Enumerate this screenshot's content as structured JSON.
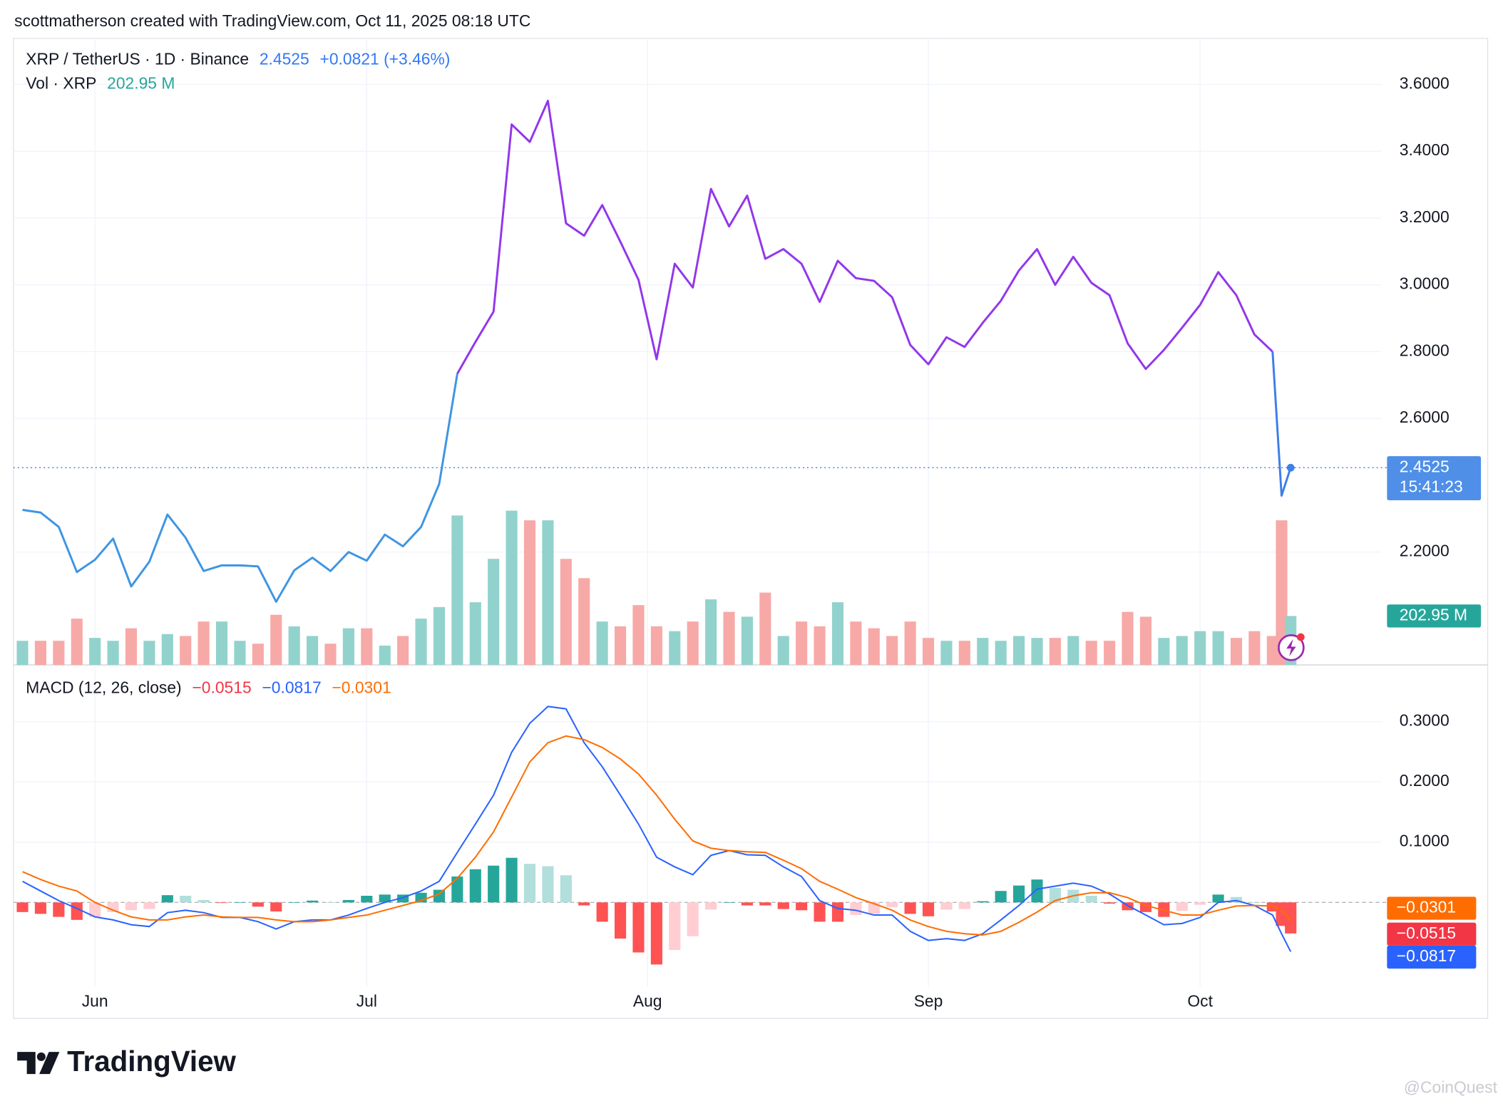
{
  "header": "scottmatherson created with TradingView.com, Oct 11, 2025 08:18 UTC",
  "logo": "TradingView",
  "watermark": "@CoinQuest",
  "chart_data": [
    {
      "type": "line",
      "change": "+0.0821 (+3.46%)",
      "countdown": "15:41:23",
      "x": [
        -8,
        -6,
        -4,
        -2,
        0,
        2,
        4,
        6,
        8,
        10,
        12,
        14,
        16,
        18,
        20,
        22,
        24,
        26,
        28,
        30,
        32,
        34,
        36,
        38,
        40,
        42,
        44,
        46,
        48,
        50,
        52,
        54,
        56,
        58,
        60,
        62,
        64,
        66,
        68,
        70,
        72,
        74,
        76,
        78,
        80,
        82,
        84,
        86,
        88,
        90,
        92,
        94,
        96,
        98,
        100,
        102,
        104,
        106,
        108,
        110,
        112,
        114,
        116,
        118,
        120,
        122,
        124,
        126,
        128,
        130,
        131,
        132
      ],
      "xlim": [
        -9,
        142
      ],
      "ylim": [
        1.862,
        3.738
      ],
      "yticks": [
        {
          "value": 2.2,
          "label": "2.2000"
        },
        {
          "value": 2.6,
          "label": "2.6000"
        },
        {
          "value": 2.8,
          "label": "2.8000"
        },
        {
          "value": 3.0,
          "label": "3.0000"
        },
        {
          "value": 3.2,
          "label": "3.2000"
        },
        {
          "value": 3.4,
          "label": "3.4000"
        },
        {
          "value": 3.6,
          "label": "3.6000"
        }
      ],
      "y2lim": [
        0,
        2600
      ],
      "grid": true,
      "series": [
        {
          "name": "XRP / TetherUS · 1D · Binance",
          "colors": [
            {
              "until": 40,
              "color": "#3d95e3"
            },
            {
              "until": 130,
              "color": "#9336eb"
            },
            {
              "until": 132,
              "color": "#3d7fe6"
            }
          ],
          "values": [
            2.326,
            2.318,
            2.275,
            2.14,
            2.177,
            2.24,
            2.097,
            2.171,
            2.312,
            2.243,
            2.143,
            2.16,
            2.16,
            2.157,
            2.051,
            2.145,
            2.183,
            2.143,
            2.2,
            2.174,
            2.252,
            2.217,
            2.275,
            2.404,
            2.734,
            2.829,
            2.92,
            3.48,
            3.428,
            3.551,
            3.184,
            3.147,
            3.239,
            3.129,
            3.015,
            2.777,
            3.063,
            2.992,
            3.287,
            3.175,
            3.267,
            3.078,
            3.107,
            3.063,
            2.949,
            3.072,
            3.02,
            3.012,
            2.963,
            2.82,
            2.762,
            2.843,
            2.814,
            2.886,
            2.952,
            3.043,
            3.107,
            3.0,
            3.084,
            3.006,
            2.969,
            2.825,
            2.748,
            2.805,
            2.871,
            2.94,
            3.038,
            2.969,
            2.851,
            2.8,
            2.369,
            2.4525
          ]
        },
        {
          "name": "Vol · XRP",
          "type": "bar",
          "axis": "y2",
          "colors": [
            "#92d2cc",
            "#f7a9a7"
          ],
          "last_label": "202.95 M",
          "values": [
            100,
            100,
            100,
            192,
            112,
            100,
            152,
            100,
            128,
            120,
            180,
            180,
            100,
            88,
            208,
            160,
            120,
            88,
            152,
            152,
            80,
            120,
            192,
            240,
            620,
            260,
            440,
            640,
            600,
            600,
            440,
            360,
            180,
            160,
            248,
            160,
            140,
            180,
            272,
            220,
            200,
            300,
            120,
            180,
            160,
            260,
            180,
            152,
            120,
            180,
            112,
            100,
            100,
            112,
            100,
            120,
            112,
            112,
            120,
            100,
            100,
            220,
            200,
            112,
            120,
            140,
            140,
            112,
            140,
            120,
            600,
            202.95
          ]
        }
      ]
    },
    {
      "type": "line",
      "title": "MACD (12, 26, close)",
      "x": [
        -8,
        -6,
        -4,
        -2,
        0,
        2,
        4,
        6,
        8,
        10,
        12,
        14,
        16,
        18,
        20,
        22,
        24,
        26,
        28,
        30,
        32,
        34,
        36,
        38,
        40,
        42,
        44,
        46,
        48,
        50,
        52,
        54,
        56,
        58,
        60,
        62,
        64,
        66,
        68,
        70,
        72,
        74,
        76,
        78,
        80,
        82,
        84,
        86,
        88,
        90,
        92,
        94,
        96,
        98,
        100,
        102,
        104,
        106,
        108,
        110,
        112,
        114,
        116,
        118,
        120,
        122,
        124,
        126,
        128,
        130,
        131,
        132
      ],
      "xlim": [
        -9,
        142
      ],
      "xticks": [
        {
          "value": 0,
          "label": "Jun"
        },
        {
          "value": 30,
          "label": "Jul"
        },
        {
          "value": 61,
          "label": "Aug"
        },
        {
          "value": 92,
          "label": "Sep"
        },
        {
          "value": 122,
          "label": "Oct"
        }
      ],
      "ylim": [
        -0.14,
        0.394
      ],
      "yticks": [
        {
          "value": 0.1,
          "label": "0.1000"
        },
        {
          "value": 0.2,
          "label": "0.2000"
        },
        {
          "value": 0.3,
          "label": "0.3000"
        }
      ],
      "series": [
        {
          "type": "bar",
          "colors": [
            "#26a69a",
            "#b2dfdb",
            "#ffcdd2",
            "#ff5252"
          ],
          "last_label": "−0.0515",
          "values": [
            -0.016,
            -0.019,
            -0.024,
            -0.029,
            -0.024,
            -0.016,
            -0.013,
            -0.011,
            0.012,
            0.011,
            0.004,
            -0.001,
            0,
            -0.007,
            -0.015,
            0,
            0.003,
            0,
            0.004,
            0.011,
            0.013,
            0.013,
            0.016,
            0.021,
            0.043,
            0.055,
            0.061,
            0.074,
            0.064,
            0.06,
            0.045,
            -0.005,
            -0.032,
            -0.06,
            -0.083,
            -0.103,
            -0.079,
            -0.056,
            -0.012,
            0,
            -0.005,
            -0.005,
            -0.011,
            -0.013,
            -0.032,
            -0.032,
            -0.021,
            -0.019,
            -0.008,
            -0.019,
            -0.023,
            -0.012,
            -0.011,
            0.002,
            0.019,
            0.028,
            0.038,
            0.024,
            0.021,
            0.011,
            -0.002,
            -0.013,
            -0.016,
            -0.024,
            -0.014,
            -0.004,
            0.013,
            0.009,
            0,
            -0.015,
            -0.039,
            -0.0515
          ]
        },
        {
          "type": "line",
          "color": "#2962ff",
          "last_label": "−0.0817",
          "values": [
            0.035,
            0.019,
            0.003,
            -0.01,
            -0.024,
            -0.029,
            -0.037,
            -0.04,
            -0.017,
            -0.013,
            -0.017,
            -0.025,
            -0.025,
            -0.032,
            -0.044,
            -0.032,
            -0.029,
            -0.029,
            -0.021,
            -0.01,
            0,
            0.008,
            0.019,
            0.035,
            0.083,
            0.13,
            0.178,
            0.249,
            0.297,
            0.325,
            0.321,
            0.265,
            0.225,
            0.178,
            0.13,
            0.075,
            0.059,
            0.046,
            0.078,
            0.086,
            0.079,
            0.078,
            0.059,
            0.043,
            0.003,
            -0.01,
            -0.013,
            -0.021,
            -0.021,
            -0.048,
            -0.063,
            -0.06,
            -0.063,
            -0.052,
            -0.029,
            -0.005,
            0.022,
            0.027,
            0.032,
            0.027,
            0.014,
            -0.005,
            -0.021,
            -0.037,
            -0.035,
            -0.025,
            0,
            0.003,
            -0.005,
            -0.021,
            -0.052,
            -0.0817
          ]
        },
        {
          "type": "line",
          "color": "#ff6d00",
          "last_label": "−0.0301",
          "values": [
            0.051,
            0.038,
            0.027,
            0.019,
            0,
            -0.013,
            -0.024,
            -0.029,
            -0.029,
            -0.024,
            -0.021,
            -0.024,
            -0.025,
            -0.025,
            -0.029,
            -0.032,
            -0.032,
            -0.029,
            -0.025,
            -0.021,
            -0.013,
            -0.005,
            0.003,
            0.014,
            0.04,
            0.075,
            0.117,
            0.175,
            0.233,
            0.265,
            0.276,
            0.27,
            0.257,
            0.238,
            0.213,
            0.178,
            0.138,
            0.102,
            0.09,
            0.086,
            0.084,
            0.083,
            0.07,
            0.056,
            0.035,
            0.022,
            0.008,
            -0.002,
            -0.013,
            -0.029,
            -0.04,
            -0.048,
            -0.052,
            -0.054,
            -0.048,
            -0.033,
            -0.016,
            0.003,
            0.011,
            0.016,
            0.016,
            0.008,
            -0.005,
            -0.013,
            -0.021,
            -0.021,
            -0.013,
            -0.006,
            -0.005,
            -0.006,
            -0.013,
            -0.0301
          ]
        }
      ]
    }
  ]
}
